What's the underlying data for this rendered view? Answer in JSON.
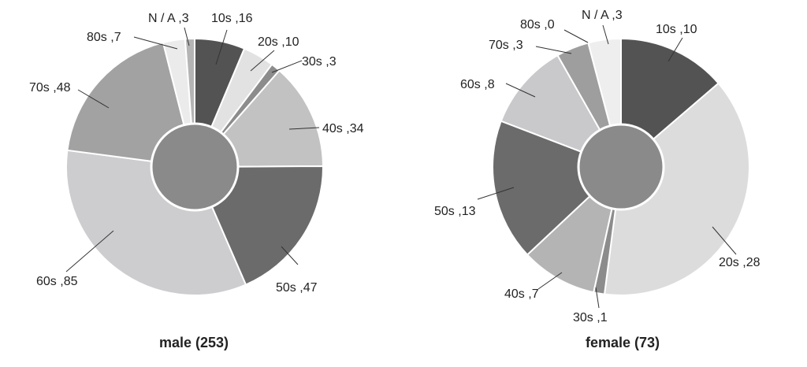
{
  "chart_data": [
    {
      "type": "pie",
      "variant": "donut",
      "title": "male (253)",
      "order": "clockwise-from-top",
      "slices": [
        {
          "label": "10s",
          "value": 16,
          "text": "10s ,16",
          "color": "#545353"
        },
        {
          "label": "20s",
          "value": 10,
          "text": "20s ,10",
          "color": "#e2e2e2"
        },
        {
          "label": "30s",
          "value": 3,
          "text": "30s ,3",
          "color": "#8c8c8c"
        },
        {
          "label": "40s",
          "value": 34,
          "text": "40s ,34",
          "color": "#c2c2c2"
        },
        {
          "label": "50s",
          "value": 47,
          "text": "50s ,47",
          "color": "#6b6b6b"
        },
        {
          "label": "60s",
          "value": 85,
          "text": "60s ,85",
          "color": "#cdcdd0"
        },
        {
          "label": "70s",
          "value": 48,
          "text": "70s ,48",
          "color": "#a2a2a2"
        },
        {
          "label": "80s",
          "value": 7,
          "text": "80s ,7",
          "color": "#ebebeb"
        },
        {
          "label": "N/A",
          "value": 3,
          "text": "N / A ,3",
          "color": "#b4b4b4"
        }
      ],
      "center_color": "#8a8a8a"
    },
    {
      "type": "pie",
      "variant": "donut",
      "title": "female (73)",
      "order": "clockwise-from-top",
      "slices": [
        {
          "label": "10s",
          "value": 10,
          "text": "10s ,10",
          "color": "#545353"
        },
        {
          "label": "20s",
          "value": 28,
          "text": "20s ,28",
          "color": "#dcdcdc"
        },
        {
          "label": "30s",
          "value": 1,
          "text": "30s ,1",
          "color": "#8c8c8c"
        },
        {
          "label": "40s",
          "value": 7,
          "text": "40s ,7",
          "color": "#b4b4b4"
        },
        {
          "label": "50s",
          "value": 13,
          "text": "50s ,13",
          "color": "#6b6b6b"
        },
        {
          "label": "60s",
          "value": 8,
          "text": "60s ,8",
          "color": "#c9c9cc"
        },
        {
          "label": "70s",
          "value": 3,
          "text": "70s ,3",
          "color": "#9e9e9e"
        },
        {
          "label": "80s",
          "value": 0,
          "text": "80s ,0",
          "color": "#d0d0d0"
        },
        {
          "label": "N/A",
          "value": 3,
          "text": "N / A ,3",
          "color": "#eeeeee"
        }
      ],
      "center_color": "#8a8a8a"
    }
  ]
}
